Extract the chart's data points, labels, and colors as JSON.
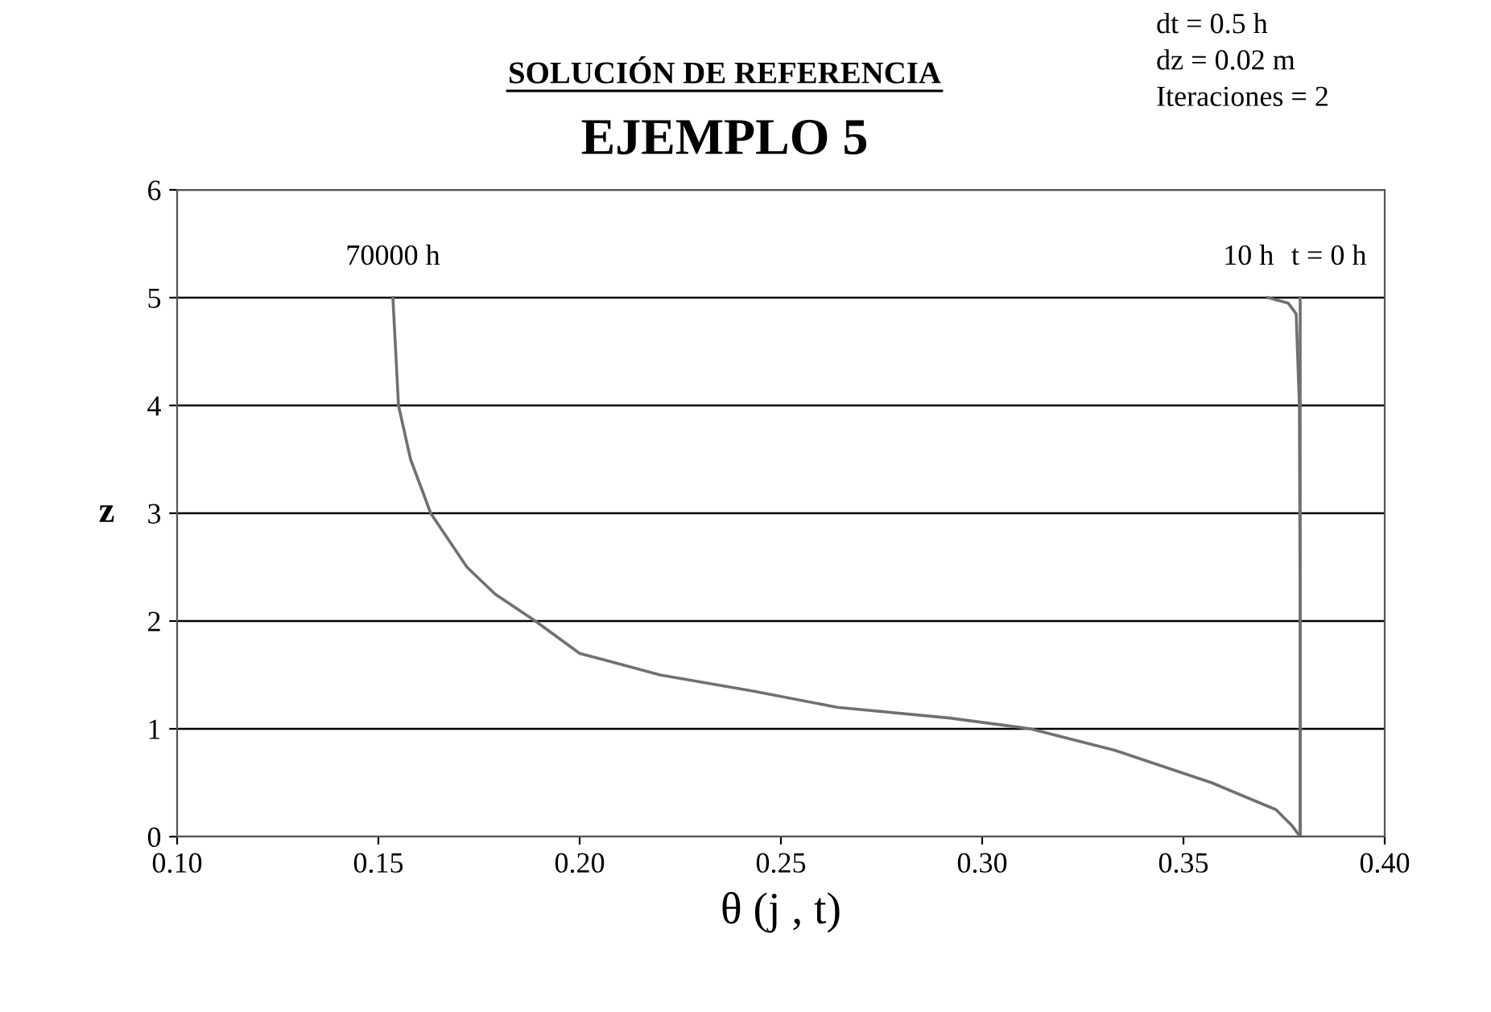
{
  "chart_data": {
    "type": "line",
    "title": "SOLUCIÓN DE REFERENCIA",
    "subtitle": "EJEMPLO 5",
    "xlabel": "θ (j , t)",
    "ylabel": "z",
    "xlim": [
      0.1,
      0.4
    ],
    "xticks": [
      {
        "value": 0.1,
        "label": "0.10"
      },
      {
        "value": 0.15,
        "label": "0.15"
      },
      {
        "value": 0.2,
        "label": "0.20"
      },
      {
        "value": 0.25,
        "label": "0.25"
      },
      {
        "value": 0.3,
        "label": "0.30"
      },
      {
        "value": 0.35,
        "label": "0.35"
      },
      {
        "value": 0.4,
        "label": "0.40"
      }
    ],
    "ylim": [
      0,
      6
    ],
    "yticks": [
      0,
      1,
      2,
      3,
      4,
      5,
      6
    ],
    "grid": "y",
    "legend": false,
    "marker": "none",
    "line_style": "solid",
    "series": [
      {
        "name": "70000 h",
        "color": "#707070",
        "x": [
          0.379,
          0.377,
          0.373,
          0.357,
          0.333,
          0.312,
          0.292,
          0.264,
          0.243,
          0.22,
          0.2,
          0.189,
          0.179,
          0.172,
          0.163,
          0.158,
          0.155,
          0.1536
        ],
        "values": [
          0,
          0.1,
          0.25,
          0.5,
          0.8,
          1.0,
          1.1,
          1.2,
          1.35,
          1.5,
          1.7,
          2.0,
          2.25,
          2.5,
          3.0,
          3.5,
          4.0,
          5.0
        ]
      },
      {
        "name": "10 h",
        "color": "#707070",
        "x": [
          0.379,
          0.379,
          0.3788,
          0.378,
          0.376,
          0.371
        ],
        "values": [
          0,
          2.0,
          4.0,
          4.85,
          4.95,
          5.0
        ]
      },
      {
        "name": "t = 0 h",
        "color": "#707070",
        "x": [
          0.379,
          0.379
        ],
        "values": [
          0,
          5
        ]
      }
    ],
    "annotations": [
      "dt = 0.5 h\ndz = 0.02 m\nIteraciones = 2"
    ]
  }
}
